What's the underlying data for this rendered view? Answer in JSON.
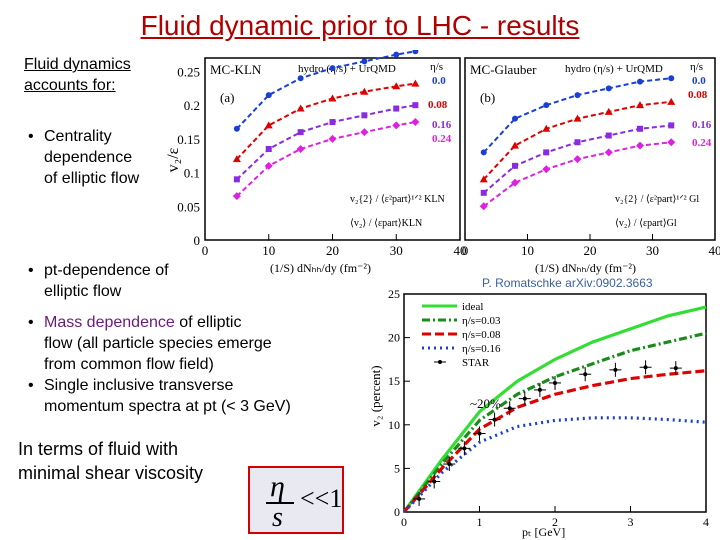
{
  "title": "Fluid dynamic prior to LHC - results",
  "intro": [
    "Fluid dynamics",
    "accounts for:"
  ],
  "bullets1": [
    [
      "Centrality",
      "dependence",
      "of elliptic flow"
    ],
    [
      "pt-dependence of",
      "elliptic flow"
    ]
  ],
  "bullets2": [
    {
      "lines": [
        "Mass dependence of elliptic",
        "flow (all particle species emerge",
        "from common flow field)"
      ],
      "highlight": "Mass dependence",
      "rest_first": " of elliptic"
    },
    {
      "lines": [
        "Single inclusive transverse",
        "momentum spectra at pt (< 3 GeV)"
      ]
    }
  ],
  "conclusion": [
    "In terms of fluid with",
    "minimal shear viscosity"
  ],
  "formula": {
    "num": "η",
    "den": "s",
    "rel": "<<1"
  },
  "credit": "P. Romatschke arXiv:0902.3663",
  "colors": {
    "title": "#b00000",
    "blue": "#1a3fd6",
    "red": "#e00000",
    "purple": "#8a2be2",
    "magenta": "#e020e0",
    "green": "#33dd33",
    "darkgreen": "#1a8c1a"
  },
  "panel_a": {
    "model": "MC-KLN",
    "legend": "hydro (η/s) + UrQMD",
    "tag": "(a)",
    "etas_header": "η/s",
    "etas": [
      "0.0",
      "0.08",
      "0.16",
      "0.24"
    ],
    "ylabel": "v₂/ε",
    "xlabel": "(1/S) dNₕₕ/dy (fm⁻²)",
    "data_legend": [
      "v₂{2} / ⟨ε²part⟩¹ᐟ² KLN",
      "⟨v₂⟩ / ⟨εpart⟩KLN"
    ]
  },
  "panel_b": {
    "model": "MC-Glauber",
    "legend": "hydro (η/s) + UrQMD",
    "tag": "(b)",
    "etas_header": "η/s",
    "etas": [
      "0.0",
      "0.08",
      "0.16",
      "0.24"
    ],
    "xlabel": "(1/S) dNₕₕ/dy (fm⁻²)",
    "data_legend": [
      "v₂{2} / ⟨ε²part⟩¹ᐟ² Gl",
      "⟨v₂⟩ / ⟨εpart⟩Gl"
    ]
  },
  "axes_top": {
    "yticks": [
      "0.25",
      "0.2",
      "0.15",
      "0.1",
      "0.05",
      "0"
    ],
    "xticks_a": [
      "0",
      "10",
      "20",
      "30",
      "40"
    ],
    "xticks_b": [
      "0",
      "10",
      "20",
      "30",
      "40"
    ]
  },
  "panel_c": {
    "legend": [
      "ideal",
      "η/s=0.03",
      "η/s=0.08",
      "η/s=0.16",
      "STAR"
    ],
    "annotation": "~20%",
    "ylabel": "v₂ (percent)",
    "xlabel": "pₜ [GeV]",
    "yticks": [
      "25",
      "20",
      "15",
      "10",
      "5",
      "0"
    ],
    "xticks": [
      "0",
      "1",
      "2",
      "3",
      "4"
    ]
  },
  "chart_data": [
    {
      "type": "line",
      "name_key": "MC-KLN",
      "xlim": [
        0,
        40
      ],
      "ylim": [
        0,
        0.27
      ],
      "series": [
        {
          "name": "0.0",
          "x": [
            5,
            10,
            15,
            20,
            25,
            30,
            33
          ],
          "y": [
            0.165,
            0.215,
            0.24,
            0.255,
            0.265,
            0.275,
            0.28
          ]
        },
        {
          "name": "0.08",
          "x": [
            5,
            10,
            15,
            20,
            25,
            30,
            33
          ],
          "y": [
            0.12,
            0.17,
            0.195,
            0.21,
            0.22,
            0.228,
            0.232
          ]
        },
        {
          "name": "0.16",
          "x": [
            5,
            10,
            15,
            20,
            25,
            30,
            33
          ],
          "y": [
            0.09,
            0.135,
            0.16,
            0.175,
            0.185,
            0.195,
            0.2
          ]
        },
        {
          "name": "0.24",
          "x": [
            5,
            10,
            15,
            20,
            25,
            30,
            33
          ],
          "y": [
            0.065,
            0.11,
            0.135,
            0.15,
            0.16,
            0.17,
            0.175
          ]
        }
      ]
    },
    {
      "type": "line",
      "name_key": "MC-Glauber",
      "xlim": [
        0,
        40
      ],
      "ylim": [
        0,
        0.27
      ],
      "series": [
        {
          "name": "0.0",
          "x": [
            3,
            8,
            13,
            18,
            23,
            28,
            33
          ],
          "y": [
            0.13,
            0.18,
            0.2,
            0.215,
            0.225,
            0.235,
            0.24
          ]
        },
        {
          "name": "0.08",
          "x": [
            3,
            8,
            13,
            18,
            23,
            28,
            33
          ],
          "y": [
            0.09,
            0.14,
            0.165,
            0.18,
            0.19,
            0.2,
            0.205
          ]
        },
        {
          "name": "0.16",
          "x": [
            3,
            8,
            13,
            18,
            23,
            28,
            33
          ],
          "y": [
            0.07,
            0.11,
            0.13,
            0.145,
            0.155,
            0.165,
            0.17
          ]
        },
        {
          "name": "0.24",
          "x": [
            3,
            8,
            13,
            18,
            23,
            28,
            33
          ],
          "y": [
            0.05,
            0.085,
            0.105,
            0.12,
            0.13,
            0.14,
            0.145
          ]
        }
      ]
    },
    {
      "type": "line",
      "xlim": [
        0,
        4
      ],
      "ylim": [
        0,
        25
      ],
      "series": [
        {
          "name": "ideal",
          "x": [
            0,
            0.5,
            1,
            1.5,
            2,
            2.5,
            3,
            3.5,
            4
          ],
          "y": [
            0,
            6,
            11.5,
            15,
            17.5,
            19.5,
            21,
            22.5,
            23.5
          ]
        },
        {
          "name": "η/s=0.03",
          "x": [
            0,
            0.5,
            1,
            1.5,
            2,
            2.5,
            3,
            3.5,
            4
          ],
          "y": [
            0,
            5.5,
            10.5,
            13.5,
            15.5,
            17,
            18.5,
            19.5,
            20.5
          ]
        },
        {
          "name": "η/s=0.08",
          "x": [
            0,
            0.5,
            1,
            1.5,
            2,
            2.5,
            3,
            3.5,
            4
          ],
          "y": [
            0,
            5,
            9.5,
            12,
            13.5,
            14.5,
            15.3,
            15.8,
            16.2
          ]
        },
        {
          "name": "η/s=0.16",
          "x": [
            0,
            0.5,
            1,
            1.5,
            2,
            2.5,
            3,
            3.5,
            4
          ],
          "y": [
            0,
            4.5,
            8,
            9.8,
            10.5,
            10.8,
            10.8,
            10.6,
            10.3
          ]
        },
        {
          "name": "STAR",
          "x": [
            0.2,
            0.4,
            0.6,
            0.8,
            1.0,
            1.2,
            1.4,
            1.6,
            1.8,
            2.0,
            2.4,
            2.8,
            3.2,
            3.6
          ],
          "y": [
            1.5,
            3.5,
            5.5,
            7.3,
            9,
            10.6,
            11.9,
            13,
            14,
            14.8,
            15.8,
            16.3,
            16.6,
            16.5
          ]
        }
      ]
    }
  ]
}
